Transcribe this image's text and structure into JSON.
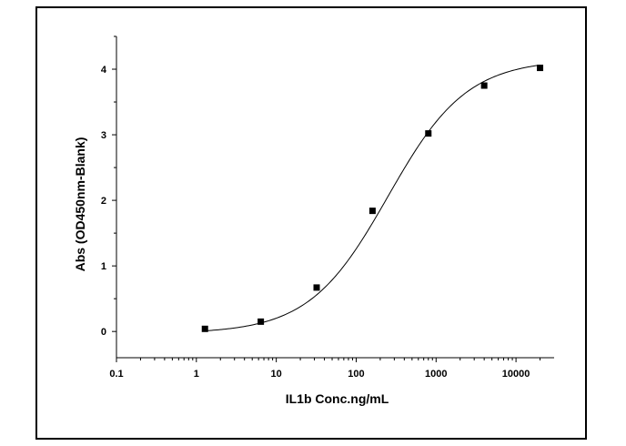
{
  "chart_data": {
    "type": "scatter",
    "title": "",
    "xlabel": "IL1b Conc.ng/mL",
    "ylabel": "Abs (OD450nm-Blank)",
    "xscale": "log",
    "xlim": [
      0.1,
      30000
    ],
    "ylim": [
      -0.4,
      4.5
    ],
    "x_tick_values": [
      0.1,
      1,
      10,
      100,
      1000,
      10000
    ],
    "x_tick_labels": [
      "0.1",
      "1",
      "10",
      "100",
      "1000",
      "10000"
    ],
    "y_tick_values": [
      0,
      1,
      2,
      3,
      4
    ],
    "y_tick_labels": [
      "0",
      "1",
      "2",
      "3",
      "4"
    ],
    "grid": false,
    "legend": "none",
    "series": [
      {
        "marker": "square",
        "color": "#000000",
        "x": [
          1.28,
          6.4,
          32,
          160,
          800,
          4000,
          20000
        ],
        "y": [
          0.04,
          0.15,
          0.67,
          1.84,
          3.02,
          3.75,
          4.02
        ]
      }
    ],
    "fit_curve": {
      "type": "4PL",
      "bottom": -0.03,
      "top": 4.15,
      "ec50": 250,
      "hill": 0.88,
      "color": "#000000"
    }
  }
}
